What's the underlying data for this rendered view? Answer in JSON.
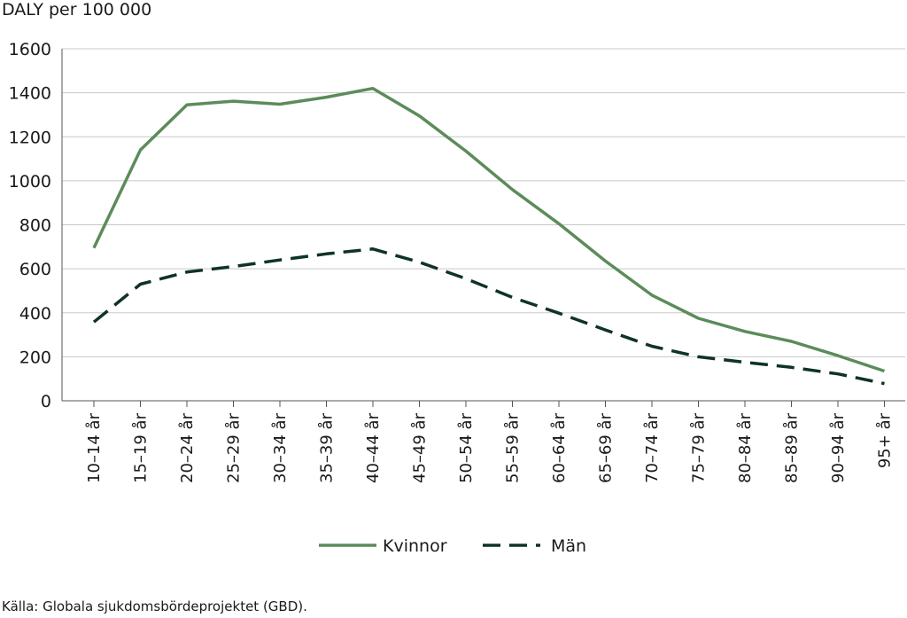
{
  "chart_data": {
    "type": "line",
    "ylabel": "DALY per 100 000",
    "xlabel": "",
    "ylim": [
      0,
      1600
    ],
    "yticks": [
      0,
      200,
      400,
      600,
      800,
      1000,
      1200,
      1400,
      1600
    ],
    "categories": [
      "10–14 år",
      "15–19 år",
      "20–24 år",
      "25–29 år",
      "30–34 år",
      "35–39 år",
      "40–44 år",
      "45–49 år",
      "50–54 år",
      "55–59 år",
      "60–64 år",
      "65–69 år",
      "70–74 år",
      "75–79 år",
      "80–84 år",
      "85–89 år",
      "90–94 år",
      "95+ år"
    ],
    "series": [
      {
        "name": "Kvinnor",
        "color": "#5b8c5a",
        "style": "solid",
        "values": [
          695,
          1140,
          1345,
          1362,
          1348,
          1380,
          1420,
          1295,
          1135,
          960,
          805,
          635,
          480,
          375,
          315,
          270,
          205,
          135
        ]
      },
      {
        "name": "Män",
        "color": "#0f3324",
        "style": "dashed",
        "values": [
          358,
          530,
          585,
          610,
          640,
          668,
          690,
          630,
          555,
          470,
          398,
          322,
          248,
          200,
          175,
          152,
          122,
          78
        ]
      }
    ],
    "grid": true,
    "legend": "bottom"
  },
  "footer": {
    "source": "Källa: Globala sjukdomsbördeprojektet (GBD)."
  }
}
